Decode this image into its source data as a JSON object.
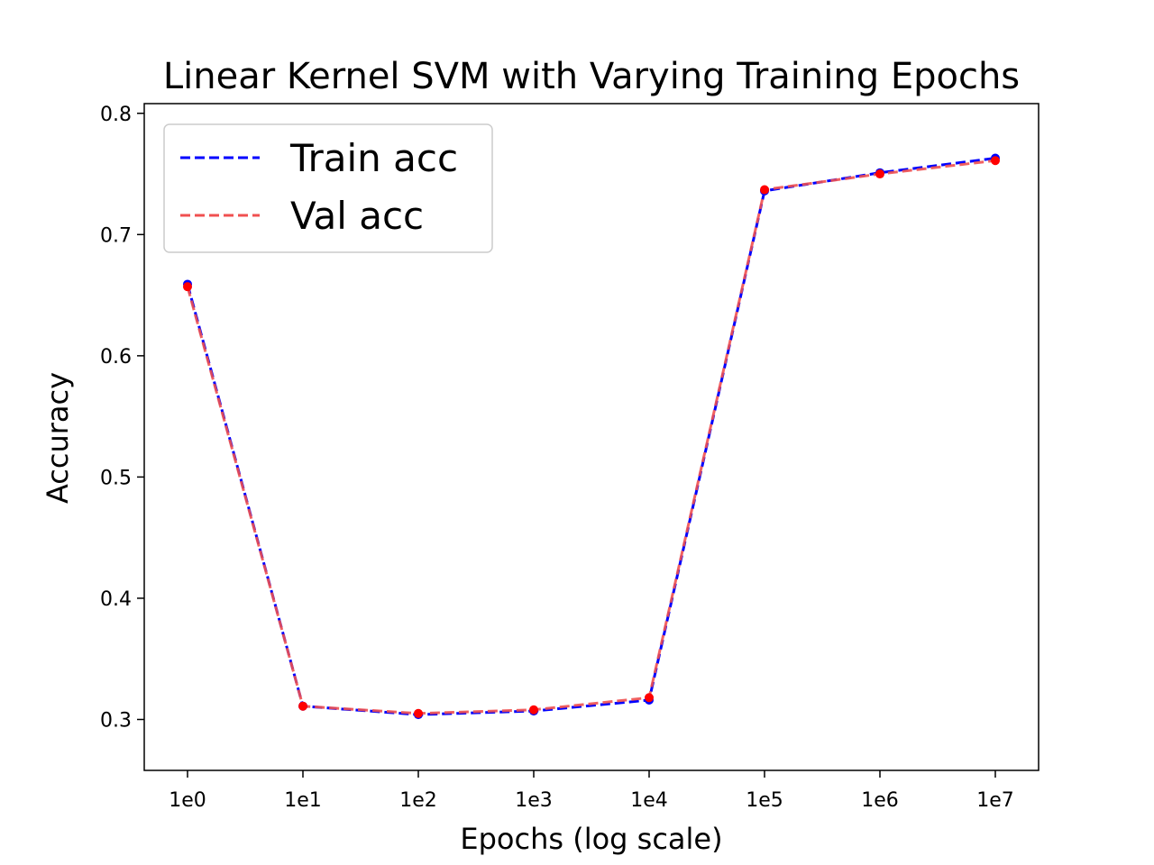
{
  "chart_data": {
    "type": "line",
    "title": "Linear Kernel SVM with Varying Training Epochs",
    "xlabel": "Epochs (log scale)",
    "ylabel": "Accuracy",
    "x_scale": "log",
    "categories": [
      "1e0",
      "1e1",
      "1e2",
      "1e3",
      "1e4",
      "1e5",
      "1e6",
      "1e7"
    ],
    "x": [
      1,
      10,
      100,
      1000,
      10000,
      100000,
      1000000,
      10000000
    ],
    "ylim": [
      0.258,
      0.808
    ],
    "yticks": [
      "0.3",
      "0.4",
      "0.5",
      "0.6",
      "0.7",
      "0.8"
    ],
    "grid": false,
    "legend_position": "top-left",
    "series": [
      {
        "name": "Train acc",
        "color": "#0000ff",
        "line_style": "dashed",
        "values": [
          0.659,
          0.311,
          0.304,
          0.307,
          0.316,
          0.736,
          0.751,
          0.763
        ]
      },
      {
        "name": "Val acc",
        "color": "#f05050",
        "marker_color": "#ff0000",
        "line_style": "dashed",
        "values": [
          0.657,
          0.311,
          0.305,
          0.308,
          0.318,
          0.737,
          0.75,
          0.761
        ]
      }
    ]
  }
}
